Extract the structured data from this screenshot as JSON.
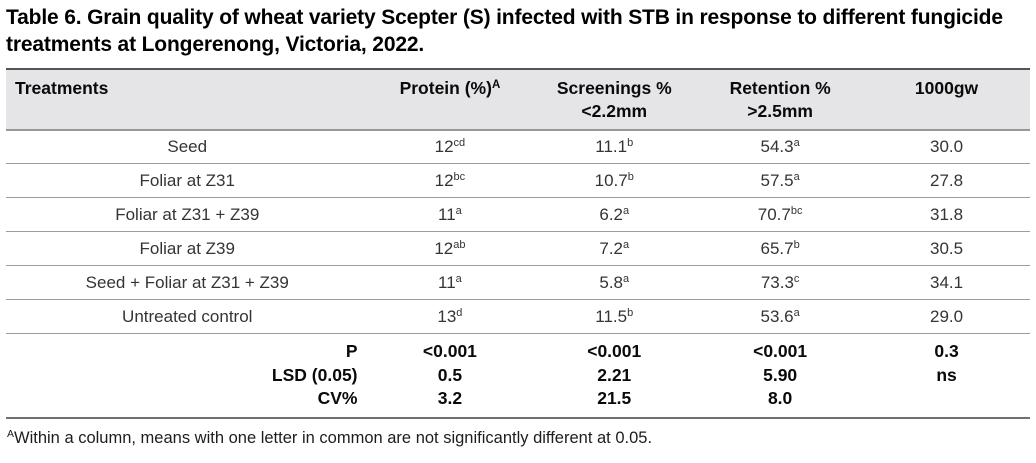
{
  "title": "Table 6. Grain quality of wheat variety Scepter (S) infected with STB in response to different fungicide treatments at Longerenong, Victoria, 2022.",
  "table": {
    "columns": [
      {
        "label": "Treatments",
        "sup": "",
        "sub": ""
      },
      {
        "label": "Protein (%)",
        "sup": "A",
        "sub": ""
      },
      {
        "label": "Screenings %",
        "sup": "",
        "sub": "<2.2mm"
      },
      {
        "label": "Retention %",
        "sup": "",
        "sub": ">2.5mm"
      },
      {
        "label": "1000gw",
        "sup": "",
        "sub": ""
      }
    ],
    "rows": [
      {
        "treatment": "Seed",
        "values": [
          {
            "v": "12",
            "s": "cd"
          },
          {
            "v": "11.1",
            "s": "b"
          },
          {
            "v": "54.3",
            "s": "a"
          },
          {
            "v": "30.0",
            "s": ""
          }
        ]
      },
      {
        "treatment": "Foliar at Z31",
        "values": [
          {
            "v": "12",
            "s": "bc"
          },
          {
            "v": "10.7",
            "s": "b"
          },
          {
            "v": "57.5",
            "s": "a"
          },
          {
            "v": "27.8",
            "s": ""
          }
        ]
      },
      {
        "treatment": "Foliar at Z31 + Z39",
        "values": [
          {
            "v": "11",
            "s": "a"
          },
          {
            "v": "6.2",
            "s": "a"
          },
          {
            "v": "70.7",
            "s": "bc"
          },
          {
            "v": "31.8",
            "s": ""
          }
        ]
      },
      {
        "treatment": "Foliar at Z39",
        "values": [
          {
            "v": "12",
            "s": "ab"
          },
          {
            "v": "7.2",
            "s": "a"
          },
          {
            "v": "65.7",
            "s": "b"
          },
          {
            "v": "30.5",
            "s": ""
          }
        ]
      },
      {
        "treatment": "Seed + Foliar at Z31 + Z39",
        "values": [
          {
            "v": "11",
            "s": "a"
          },
          {
            "v": "5.8",
            "s": "a"
          },
          {
            "v": "73.3",
            "s": "c"
          },
          {
            "v": "34.1",
            "s": ""
          }
        ]
      },
      {
        "treatment": "Untreated control",
        "values": [
          {
            "v": "13",
            "s": "d"
          },
          {
            "v": "11.5",
            "s": "b"
          },
          {
            "v": "53.6",
            "s": "a"
          },
          {
            "v": "29.0",
            "s": ""
          }
        ]
      }
    ],
    "stats": [
      {
        "label": "P",
        "values": [
          "<0.001",
          "<0.001",
          "<0.001",
          "0.3"
        ]
      },
      {
        "label": "LSD (0.05)",
        "values": [
          "0.5",
          "2.21",
          "5.90",
          "ns"
        ]
      },
      {
        "label": "CV%",
        "values": [
          "3.2",
          "21.5",
          "8.0",
          ""
        ]
      }
    ]
  },
  "footnote": {
    "sup": "A",
    "text": "Within a column, means with one letter in common are not significantly different at 0.05."
  },
  "colors": {
    "header_bg": "#e5e5e7",
    "border_dark": "#545456",
    "border_light": "#9c9c9e",
    "title_text": "#000000",
    "data_text": "#343436"
  }
}
